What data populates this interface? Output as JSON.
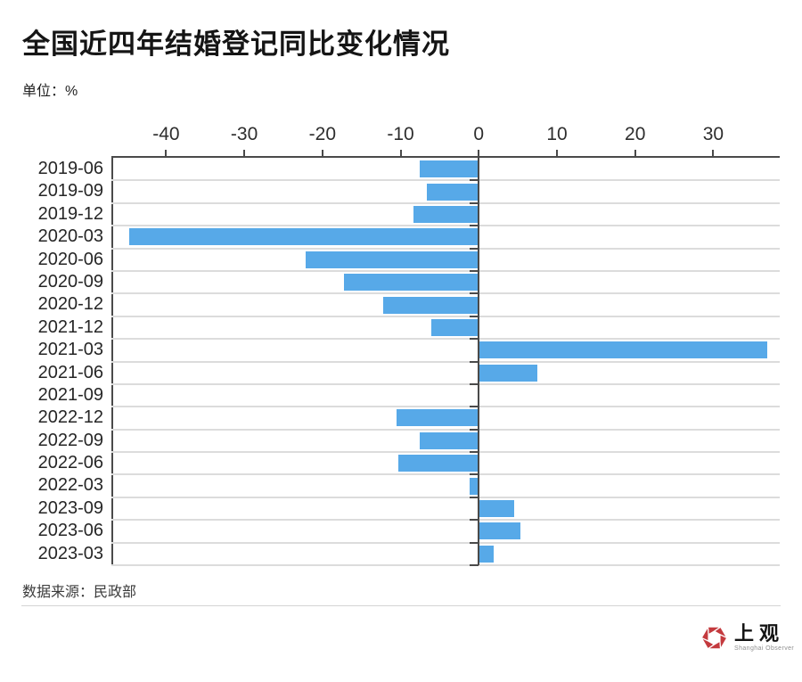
{
  "header": {
    "title": "全国近四年结婚登记同比变化情况",
    "unit_label": "单位：%"
  },
  "chart_data": {
    "type": "bar",
    "orientation": "horizontal",
    "title": "全国近四年结婚登记同比变化情况",
    "unit": "%",
    "categories": [
      "2019-06",
      "2019-09",
      "2019-12",
      "2020-03",
      "2020-06",
      "2020-09",
      "2020-12",
      "2021-12",
      "2021-03",
      "2021-06",
      "2021-09",
      "2022-12",
      "2022-09",
      "2022-06",
      "2022-03",
      "2023-09",
      "2023-06",
      "2023-03"
    ],
    "values": [
      -7.6,
      -6.7,
      -8.4,
      -44.7,
      -22.2,
      -17.3,
      -12.2,
      -6.1,
      36.9,
      7.5,
      -0.1,
      -10.5,
      -7.5,
      -10.3,
      -1.2,
      4.5,
      5.3,
      1.9
    ],
    "x_ticks": [
      -40,
      -30,
      -20,
      -10,
      0,
      10,
      20,
      30
    ],
    "xlim": [
      -47,
      38.5
    ],
    "grid": true,
    "legend": "none",
    "bar_color": "#57a9e8",
    "axis_color": "#4a4a4a",
    "grid_color": "#dcdcdc"
  },
  "footer": {
    "source_label": "数据来源：民政部"
  },
  "logo": {
    "name": "上观",
    "subname": "Shanghai Observer",
    "icon_color": "#c43a3e"
  }
}
